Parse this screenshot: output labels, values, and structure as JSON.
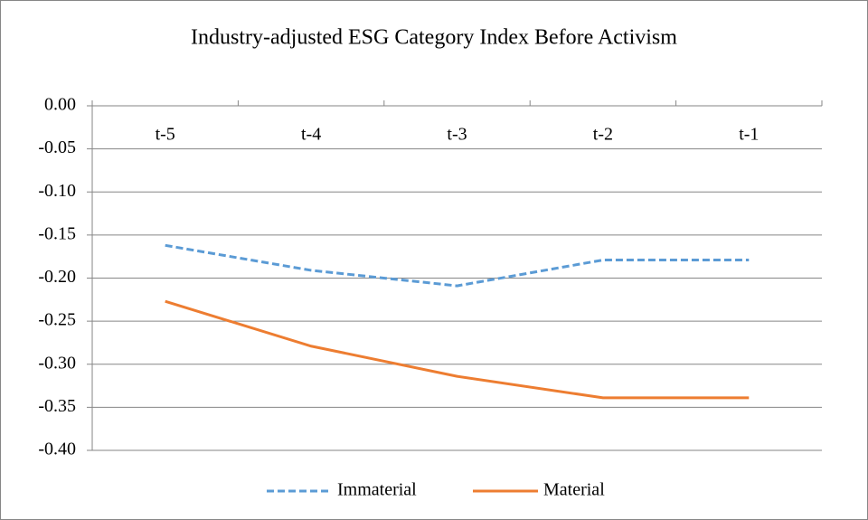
{
  "chart_data": {
    "type": "line",
    "title": "Industry-adjusted ESG Category Index Before Activism",
    "categories": [
      "t-5",
      "t-4",
      "t-3",
      "t-2",
      "t-1"
    ],
    "series": [
      {
        "name": "Immaterial",
        "color": "#5b9bd5",
        "style": "dashed",
        "values": [
          -0.162,
          -0.191,
          -0.209,
          -0.179,
          -0.179
        ]
      },
      {
        "name": "Material",
        "color": "#ed7d31",
        "style": "solid",
        "values": [
          -0.227,
          -0.279,
          -0.314,
          -0.339,
          -0.339
        ]
      }
    ],
    "ylim": [
      -0.4,
      0
    ],
    "yticks": [
      {
        "value": 0,
        "label": "0.00"
      },
      {
        "value": -0.05,
        "label": "-0.05"
      },
      {
        "value": -0.1,
        "label": "-0.10"
      },
      {
        "value": -0.15,
        "label": "-0.15"
      },
      {
        "value": -0.2,
        "label": "-0.20"
      },
      {
        "value": -0.25,
        "label": "-0.25"
      },
      {
        "value": -0.3,
        "label": "-0.30"
      },
      {
        "value": -0.35,
        "label": "-0.35"
      },
      {
        "value": -0.4,
        "label": "-0.40"
      }
    ],
    "grid": true,
    "legend": "bottom"
  }
}
